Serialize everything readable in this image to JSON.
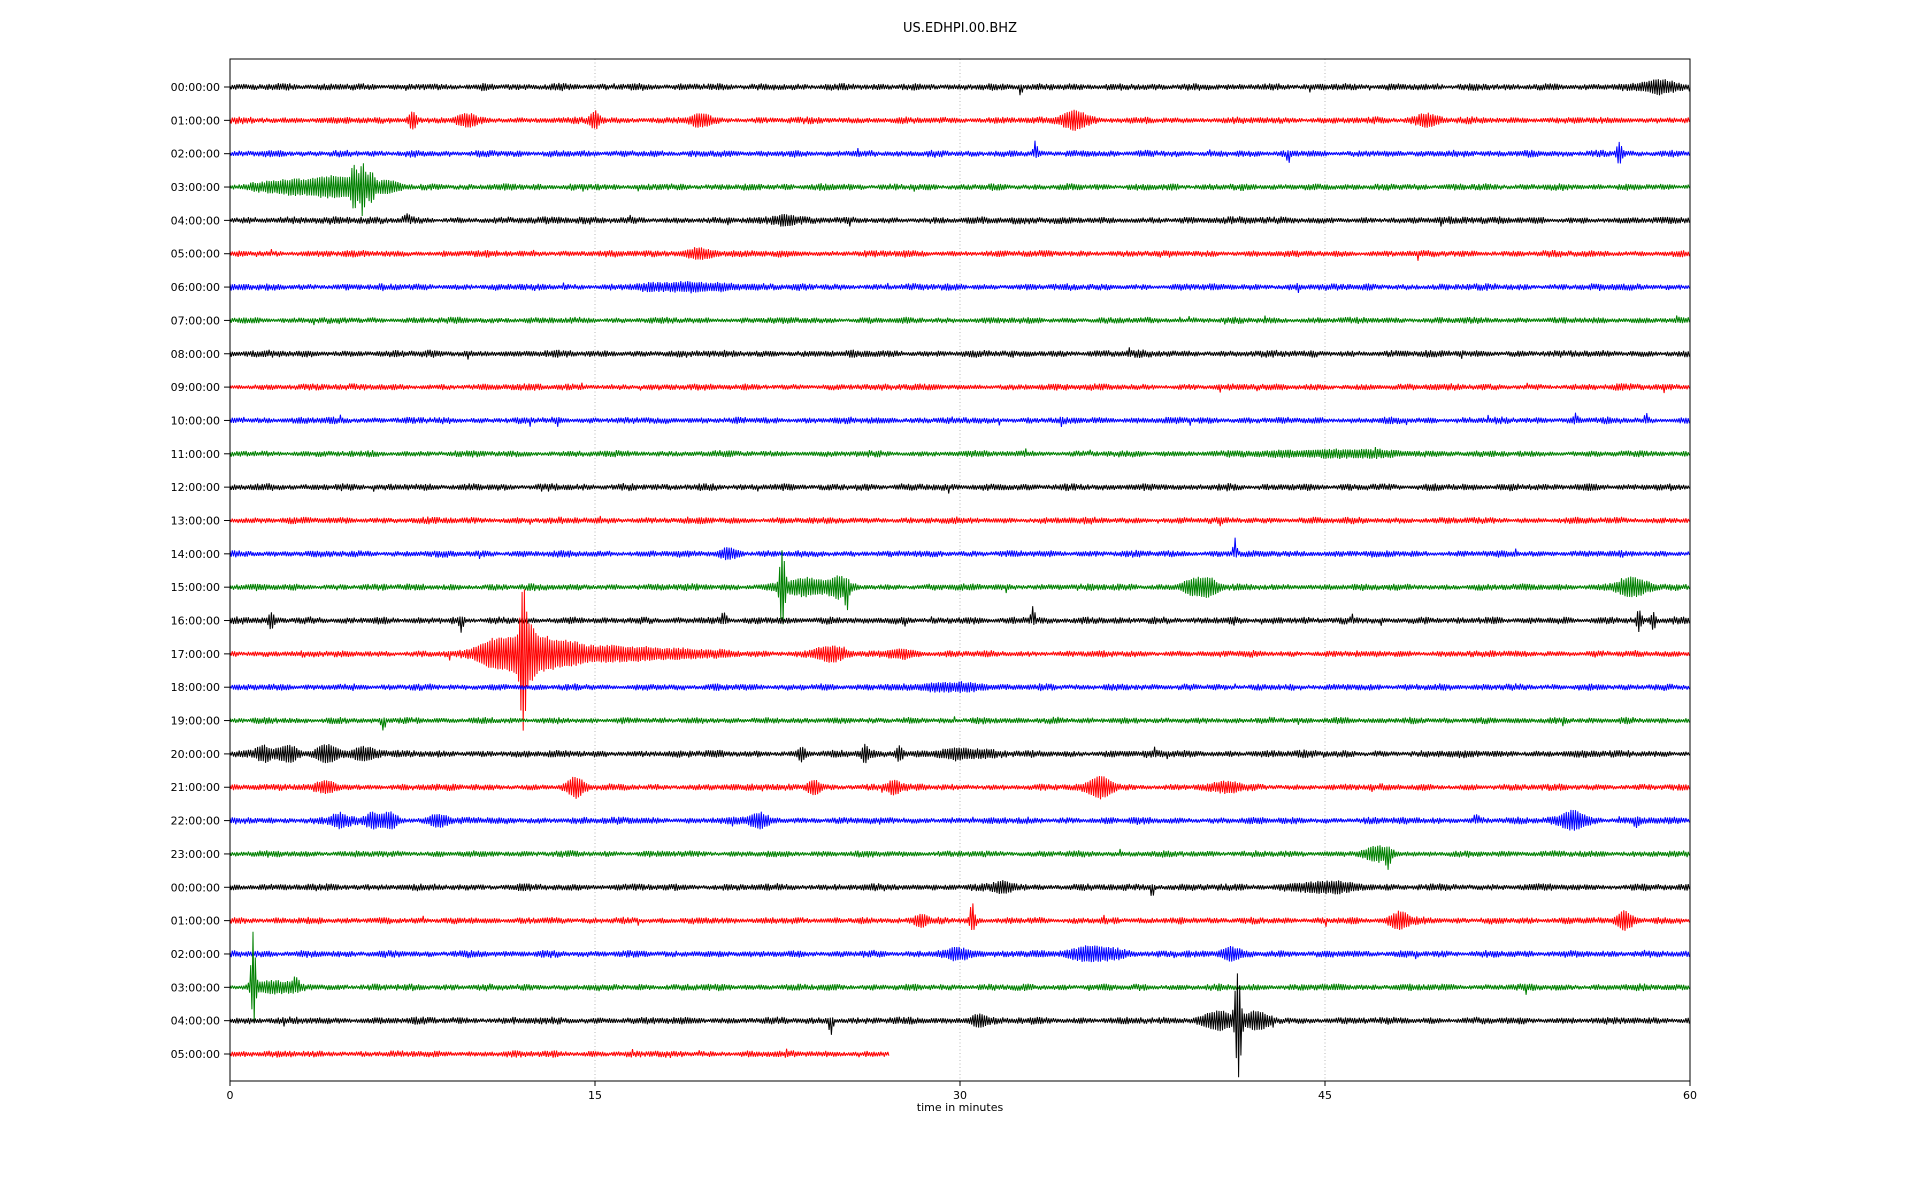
{
  "window": {
    "title": "US.EDHPI.00.BHZ"
  },
  "chart_data": {
    "type": "line",
    "chart_kind": "seismic-dayplot-helicorder",
    "title": "US.EDHPI.00.BHZ",
    "xlabel": "time in minutes",
    "xlim": [
      0,
      60
    ],
    "xticks": [
      0,
      15,
      30,
      45,
      60
    ],
    "gridlines_minutes": [
      15,
      30,
      45
    ],
    "grid": true,
    "legend": "none",
    "trace_colors": {
      "black": "#000000",
      "red": "#ff0000",
      "blue": "#0000ff",
      "green": "#008000"
    },
    "grid_color": "#b0b0b0",
    "rows": [
      {
        "label": "00:00:00",
        "color": "black",
        "amp": 4.2,
        "events": [
          {
            "t": 32.5,
            "a": 8,
            "w": 0.06,
            "dir": "down"
          },
          {
            "t": 58.7,
            "a": 6,
            "w": 0.5
          }
        ]
      },
      {
        "label": "01:00:00",
        "color": "red",
        "amp": 4.0,
        "events": [
          {
            "t": 7.5,
            "a": 9,
            "w": 0.12
          },
          {
            "t": 9.7,
            "a": 5,
            "w": 0.3
          },
          {
            "t": 15.0,
            "a": 8,
            "w": 0.15
          },
          {
            "t": 19.3,
            "a": 5,
            "w": 0.3
          },
          {
            "t": 34.7,
            "a": 9,
            "w": 0.4
          },
          {
            "t": 49.2,
            "a": 5,
            "w": 0.4
          }
        ]
      },
      {
        "label": "02:00:00",
        "color": "blue",
        "amp": 4.0,
        "events": [
          {
            "t": 33.1,
            "a": 13,
            "w": 0.06,
            "dir": "up"
          },
          {
            "t": 43.5,
            "a": 7,
            "w": 0.06,
            "dir": "down"
          },
          {
            "t": 57.1,
            "a": 11,
            "w": 0.08
          }
        ]
      },
      {
        "label": "03:00:00",
        "color": "green",
        "amp": 4.0,
        "events": [
          {
            "t": 2.2,
            "a": 5,
            "w": 0.8
          },
          {
            "t": 3.6,
            "a": 6,
            "w": 0.6
          },
          {
            "t": 4.6,
            "a": 7,
            "w": 0.5
          },
          {
            "t": 5.1,
            "a": 18,
            "w": 0.1
          },
          {
            "t": 5.45,
            "a": 26,
            "w": 0.09
          },
          {
            "t": 5.8,
            "a": 12,
            "w": 0.12
          },
          {
            "t": 6.4,
            "a": 6,
            "w": 0.4
          }
        ]
      },
      {
        "label": "04:00:00",
        "color": "black",
        "amp": 4.3,
        "events": [
          {
            "t": 7.3,
            "a": 5,
            "w": 0.15,
            "dir": "up"
          },
          {
            "t": 22.8,
            "a": 4,
            "w": 0.3
          }
        ]
      },
      {
        "label": "05:00:00",
        "color": "red",
        "amp": 4.0,
        "events": [
          {
            "t": 19.3,
            "a": 4,
            "w": 0.5
          }
        ]
      },
      {
        "label": "06:00:00",
        "color": "blue",
        "amp": 4.0,
        "events": [
          {
            "t": 19.0,
            "a": 3,
            "w": 1.5
          }
        ]
      },
      {
        "label": "07:00:00",
        "color": "green",
        "amp": 3.8,
        "events": []
      },
      {
        "label": "08:00:00",
        "color": "black",
        "amp": 4.2,
        "events": []
      },
      {
        "label": "09:00:00",
        "color": "red",
        "amp": 3.9,
        "events": []
      },
      {
        "label": "10:00:00",
        "color": "blue",
        "amp": 4.0,
        "events": [
          {
            "t": 55.3,
            "a": 7,
            "w": 0.06,
            "dir": "up"
          },
          {
            "t": 58.2,
            "a": 7,
            "w": 0.06,
            "dir": "up"
          }
        ]
      },
      {
        "label": "11:00:00",
        "color": "green",
        "amp": 3.8,
        "events": [
          {
            "t": 45.5,
            "a": 2.5,
            "w": 2.0
          }
        ]
      },
      {
        "label": "12:00:00",
        "color": "black",
        "amp": 4.2,
        "events": []
      },
      {
        "label": "13:00:00",
        "color": "red",
        "amp": 4.0,
        "events": []
      },
      {
        "label": "14:00:00",
        "color": "blue",
        "amp": 4.0,
        "events": [
          {
            "t": 20.5,
            "a": 4,
            "w": 0.3
          },
          {
            "t": 41.3,
            "a": 15,
            "w": 0.06,
            "dir": "up"
          }
        ]
      },
      {
        "label": "15:00:00",
        "color": "green",
        "amp": 4.0,
        "events": [
          {
            "t": 22.7,
            "a": 40,
            "w": 0.08
          },
          {
            "t": 23.6,
            "a": 7,
            "w": 0.8
          },
          {
            "t": 25.0,
            "a": 8,
            "w": 0.3
          },
          {
            "t": 25.35,
            "a": 18,
            "w": 0.07,
            "dir": "down"
          },
          {
            "t": 39.5,
            "a": 7,
            "w": 0.3
          },
          {
            "t": 40.2,
            "a": 8,
            "w": 0.3
          },
          {
            "t": 57.6,
            "a": 8,
            "w": 0.5
          }
        ]
      },
      {
        "label": "16:00:00",
        "color": "black",
        "amp": 4.2,
        "events": [
          {
            "t": 1.7,
            "a": 7,
            "w": 0.1
          },
          {
            "t": 9.5,
            "a": 9,
            "w": 0.08,
            "dir": "down"
          },
          {
            "t": 20.3,
            "a": 6,
            "w": 0.1,
            "dir": "up"
          },
          {
            "t": 33.0,
            "a": 12,
            "w": 0.07,
            "dir": "up"
          },
          {
            "t": 57.9,
            "a": 9,
            "w": 0.08
          },
          {
            "t": 58.5,
            "a": 8,
            "w": 0.08
          }
        ]
      },
      {
        "label": "17:00:00",
        "color": "red",
        "amp": 4.0,
        "events": [
          {
            "t": 10.3,
            "a": 5,
            "w": 0.4
          },
          {
            "t": 10.8,
            "a": 8,
            "w": 0.35
          },
          {
            "t": 11.3,
            "a": 10,
            "w": 0.3
          },
          {
            "t": 11.8,
            "a": 14,
            "w": 0.25
          },
          {
            "t": 12.05,
            "a": 60,
            "w": 0.1
          },
          {
            "t": 12.35,
            "a": 22,
            "w": 0.2
          },
          {
            "t": 12.9,
            "a": 12,
            "w": 0.4
          },
          {
            "t": 13.8,
            "a": 8,
            "w": 0.6
          },
          {
            "t": 15.5,
            "a": 5,
            "w": 1.2
          },
          {
            "t": 18.0,
            "a": 3.5,
            "w": 1.5
          },
          {
            "t": 24.6,
            "a": 6,
            "w": 0.5
          },
          {
            "t": 27.5,
            "a": 4,
            "w": 0.4
          }
        ]
      },
      {
        "label": "18:00:00",
        "color": "blue",
        "amp": 4.0,
        "events": [
          {
            "t": 29.5,
            "a": 3,
            "w": 1.0
          }
        ]
      },
      {
        "label": "19:00:00",
        "color": "green",
        "amp": 3.8,
        "events": [
          {
            "t": 6.3,
            "a": 9,
            "w": 0.07,
            "dir": "down"
          }
        ]
      },
      {
        "label": "20:00:00",
        "color": "black",
        "amp": 4.3,
        "events": [
          {
            "t": 1.4,
            "a": 7,
            "w": 0.25
          },
          {
            "t": 2.4,
            "a": 7,
            "w": 0.3
          },
          {
            "t": 4.0,
            "a": 8,
            "w": 0.35
          },
          {
            "t": 5.5,
            "a": 5,
            "w": 0.4
          },
          {
            "t": 23.5,
            "a": 6,
            "w": 0.12
          },
          {
            "t": 26.1,
            "a": 8,
            "w": 0.1
          },
          {
            "t": 27.5,
            "a": 6,
            "w": 0.12
          },
          {
            "t": 30.0,
            "a": 4,
            "w": 0.8
          }
        ]
      },
      {
        "label": "21:00:00",
        "color": "red",
        "amp": 4.0,
        "events": [
          {
            "t": 4.0,
            "a": 5,
            "w": 0.3
          },
          {
            "t": 14.2,
            "a": 9,
            "w": 0.25
          },
          {
            "t": 24.0,
            "a": 7,
            "w": 0.2
          },
          {
            "t": 27.3,
            "a": 6,
            "w": 0.2
          },
          {
            "t": 35.8,
            "a": 10,
            "w": 0.35
          },
          {
            "t": 41.0,
            "a": 4,
            "w": 0.4
          }
        ]
      },
      {
        "label": "22:00:00",
        "color": "blue",
        "amp": 4.2,
        "events": [
          {
            "t": 4.5,
            "a": 6,
            "w": 0.3
          },
          {
            "t": 5.9,
            "a": 7,
            "w": 0.25
          },
          {
            "t": 6.6,
            "a": 7,
            "w": 0.2
          },
          {
            "t": 8.6,
            "a": 5,
            "w": 0.3
          },
          {
            "t": 21.7,
            "a": 6,
            "w": 0.3
          },
          {
            "t": 51.2,
            "a": 5,
            "w": 0.1,
            "dir": "up"
          },
          {
            "t": 55.2,
            "a": 9,
            "w": 0.4
          },
          {
            "t": 57.8,
            "a": 6,
            "w": 0.1,
            "dir": "down"
          }
        ]
      },
      {
        "label": "23:00:00",
        "color": "green",
        "amp": 3.8,
        "events": [
          {
            "t": 47.2,
            "a": 6,
            "w": 0.4
          },
          {
            "t": 47.6,
            "a": 10,
            "w": 0.08,
            "dir": "down"
          }
        ]
      },
      {
        "label": "00:00:00",
        "color": "black",
        "amp": 4.2,
        "events": [
          {
            "t": 31.8,
            "a": 5,
            "w": 0.3
          },
          {
            "t": 37.9,
            "a": 9,
            "w": 0.07,
            "dir": "down"
          },
          {
            "t": 45.0,
            "a": 4,
            "w": 1.0
          }
        ]
      },
      {
        "label": "01:00:00",
        "color": "red",
        "amp": 4.0,
        "events": [
          {
            "t": 28.4,
            "a": 6,
            "w": 0.2
          },
          {
            "t": 30.5,
            "a": 18,
            "w": 0.07,
            "dir": "up"
          },
          {
            "t": 30.55,
            "a": 7,
            "w": 0.1,
            "dir": "down"
          },
          {
            "t": 48.1,
            "a": 8,
            "w": 0.3
          },
          {
            "t": 57.3,
            "a": 8,
            "w": 0.25
          }
        ]
      },
      {
        "label": "02:00:00",
        "color": "blue",
        "amp": 4.2,
        "events": [
          {
            "t": 30.0,
            "a": 4,
            "w": 0.5
          },
          {
            "t": 35.5,
            "a": 6,
            "w": 0.8
          },
          {
            "t": 41.1,
            "a": 6,
            "w": 0.3
          }
        ]
      },
      {
        "label": "03:00:00",
        "color": "green",
        "amp": 4.0,
        "events": [
          {
            "t": 0.95,
            "a": 58,
            "w": 0.07,
            "dir": "up"
          },
          {
            "t": 0.97,
            "a": 26,
            "w": 0.07,
            "dir": "down"
          },
          {
            "t": 1.8,
            "a": 5,
            "w": 0.6
          },
          {
            "t": 2.7,
            "a": 8,
            "w": 0.1,
            "dir": "up"
          }
        ]
      },
      {
        "label": "04:00:00",
        "color": "black",
        "amp": 4.2,
        "events": [
          {
            "t": 24.7,
            "a": 13,
            "w": 0.07,
            "dir": "down"
          },
          {
            "t": 30.8,
            "a": 6,
            "w": 0.25
          },
          {
            "t": 40.6,
            "a": 8,
            "w": 0.5
          },
          {
            "t": 41.4,
            "a": 45,
            "w": 0.09,
            "dir": "up"
          },
          {
            "t": 41.45,
            "a": 50,
            "w": 0.09,
            "dir": "down"
          },
          {
            "t": 42.2,
            "a": 7,
            "w": 0.4
          }
        ]
      },
      {
        "label": "05:00:00",
        "color": "red",
        "amp": 4.0,
        "end_minute": 27.1,
        "events": []
      }
    ]
  }
}
